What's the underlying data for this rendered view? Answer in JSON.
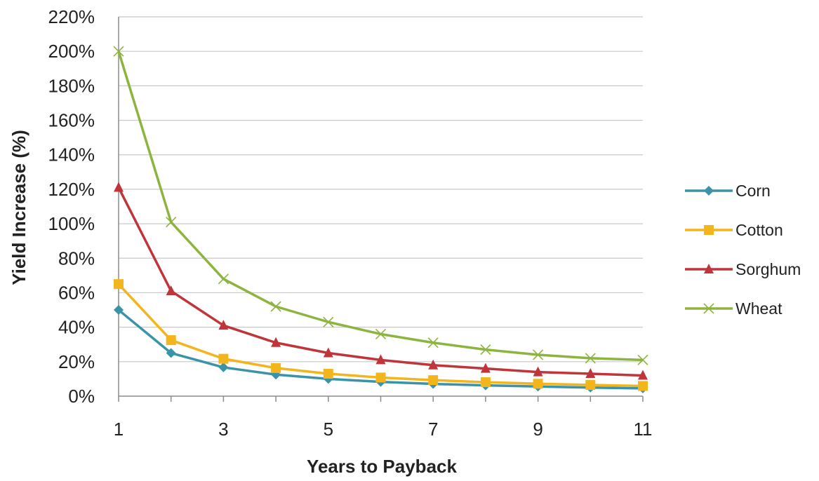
{
  "chart_data": {
    "type": "line",
    "title": "",
    "xlabel": "Years to Payback",
    "ylabel": "Yield Increase (%)",
    "x": [
      1,
      2,
      3,
      4,
      5,
      6,
      7,
      8,
      9,
      10,
      11
    ],
    "x_ticks": [
      "1",
      "3",
      "5",
      "7",
      "9",
      "11"
    ],
    "xlim": [
      1,
      11
    ],
    "ylim": [
      0,
      2.2
    ],
    "y_ticks": [
      "0%",
      "20%",
      "40%",
      "60%",
      "80%",
      "100%",
      "120%",
      "140%",
      "160%",
      "180%",
      "200%",
      "220%"
    ],
    "grid": true,
    "legend_position": "right",
    "series": [
      {
        "name": "Corn",
        "color": "#3a93a9",
        "marker": "diamond",
        "values": [
          0.5,
          0.25,
          0.167,
          0.125,
          0.1,
          0.083,
          0.071,
          0.0625,
          0.056,
          0.05,
          0.045
        ]
      },
      {
        "name": "Cotton",
        "color": "#f2b51c",
        "marker": "square",
        "values": [
          0.65,
          0.325,
          0.217,
          0.163,
          0.13,
          0.108,
          0.093,
          0.081,
          0.072,
          0.065,
          0.059
        ]
      },
      {
        "name": "Sorghum",
        "color": "#c0353a",
        "marker": "triangle",
        "values": [
          1.21,
          0.61,
          0.41,
          0.31,
          0.25,
          0.21,
          0.18,
          0.16,
          0.14,
          0.13,
          0.12
        ]
      },
      {
        "name": "Wheat",
        "color": "#8db43e",
        "marker": "x",
        "values": [
          2.0,
          1.01,
          0.68,
          0.52,
          0.43,
          0.36,
          0.31,
          0.27,
          0.24,
          0.22,
          0.21
        ]
      }
    ]
  }
}
